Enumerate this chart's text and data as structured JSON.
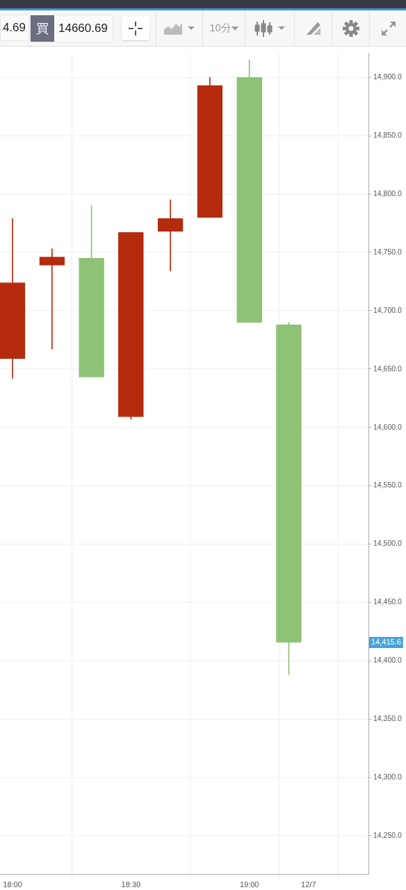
{
  "chart_data": {
    "type": "candlestick",
    "x": [
      18,
      18.1667,
      18.3333,
      18.5,
      18.6667,
      18.8333,
      19,
      19.1667
    ],
    "ohlc": [
      [
        14659,
        14779,
        14642,
        14724
      ],
      [
        14739,
        14753,
        14667,
        14746
      ],
      [
        14745,
        14790,
        14643,
        14643
      ],
      [
        14609,
        14767,
        14607,
        14767
      ],
      [
        14768,
        14795,
        14734,
        14779
      ],
      [
        14780,
        14900,
        14780,
        14893
      ],
      [
        14900,
        14915,
        14690,
        14690
      ],
      [
        14688,
        14690,
        14388,
        14415.6
      ]
    ],
    "colors": [
      "#b52b0e",
      "#b52b0e",
      "#8ec276",
      "#b52b0e",
      "#b52b0e",
      "#b52b0e",
      "#8ec276",
      "#8ec276"
    ],
    "xlim": [
      17.947,
      19.503
    ],
    "xticks": [
      {
        "value": 18,
        "label": "18:00"
      },
      {
        "value": 18.5,
        "label": "18:30"
      },
      {
        "value": 19,
        "label": "19:00"
      },
      {
        "value": 19.25,
        "label": "12/7"
      }
    ],
    "ylim": [
      14216.7,
      14920.8
    ],
    "yticks": [
      {
        "value": 14250,
        "label": "14,250.0"
      },
      {
        "value": 14300,
        "label": "14,300.0"
      },
      {
        "value": 14350,
        "label": "14,350.0"
      },
      {
        "value": 14400,
        "label": "14,400.0"
      },
      {
        "value": 14450,
        "label": "14,450.0"
      },
      {
        "value": 14500,
        "label": "14,500.0"
      },
      {
        "value": 14550,
        "label": "14,550.0"
      },
      {
        "value": 14600,
        "label": "14,600.0"
      },
      {
        "value": 14650,
        "label": "14,650.0"
      },
      {
        "value": 14700,
        "label": "14,700.0"
      },
      {
        "value": 14750,
        "label": "14,750.0"
      },
      {
        "value": 14800,
        "label": "14,800.0"
      },
      {
        "value": 14850,
        "label": "14,850.0"
      },
      {
        "value": 14900,
        "label": "14,900.0"
      }
    ],
    "grid": true,
    "annotations": [
      "4.69",
      "買",
      "14660.69",
      "10分",
      "14,415.6"
    ]
  }
}
